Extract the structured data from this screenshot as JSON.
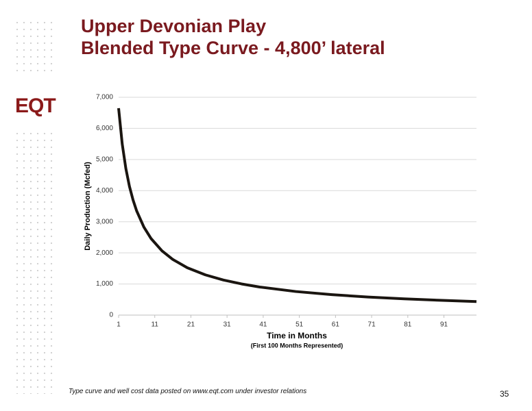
{
  "slide": {
    "title_line1": "Upper Devonian Play",
    "title_line2": "Blended Type Curve - 4,800’ lateral",
    "logo": "EQT",
    "footer": "Type curve and well cost data posted on www.eqt.com under investor relations",
    "page_number": "35"
  },
  "chart_data": {
    "type": "line",
    "y_label": "Daily Production (Mcfed)",
    "x_label": "Time in Months",
    "x_sublabel": "(First 100 Months Represented)",
    "x": [
      1,
      2,
      3,
      4,
      5,
      6,
      8,
      10,
      13,
      16,
      20,
      25,
      30,
      35,
      40,
      50,
      60,
      70,
      80,
      90,
      100
    ],
    "series": [
      {
        "name": "Blended Type Curve",
        "color": "#1a1510",
        "values": [
          6650,
          5500,
          4713,
          4136,
          3697,
          3347,
          2827,
          2457,
          2065,
          1788,
          1522,
          1293,
          1127,
          1002,
          903,
          758,
          657,
          581,
          522,
          475,
          436
        ]
      }
    ],
    "xlim": [
      1,
      100
    ],
    "xticks": [
      1,
      11,
      21,
      31,
      41,
      51,
      61,
      71,
      81,
      91
    ],
    "ylim": [
      0,
      7000
    ],
    "yticks": [
      0,
      {
        "value": 1000,
        "label": "1,000"
      },
      {
        "value": 2000,
        "label": "2,000"
      },
      {
        "value": 3000,
        "label": "3,000"
      },
      {
        "value": 4000,
        "label": "4,000"
      },
      {
        "value": 5000,
        "label": "5,000"
      },
      {
        "value": 6000,
        "label": "6,000"
      },
      {
        "value": 7000,
        "label": "7,000"
      }
    ],
    "grid": true
  }
}
